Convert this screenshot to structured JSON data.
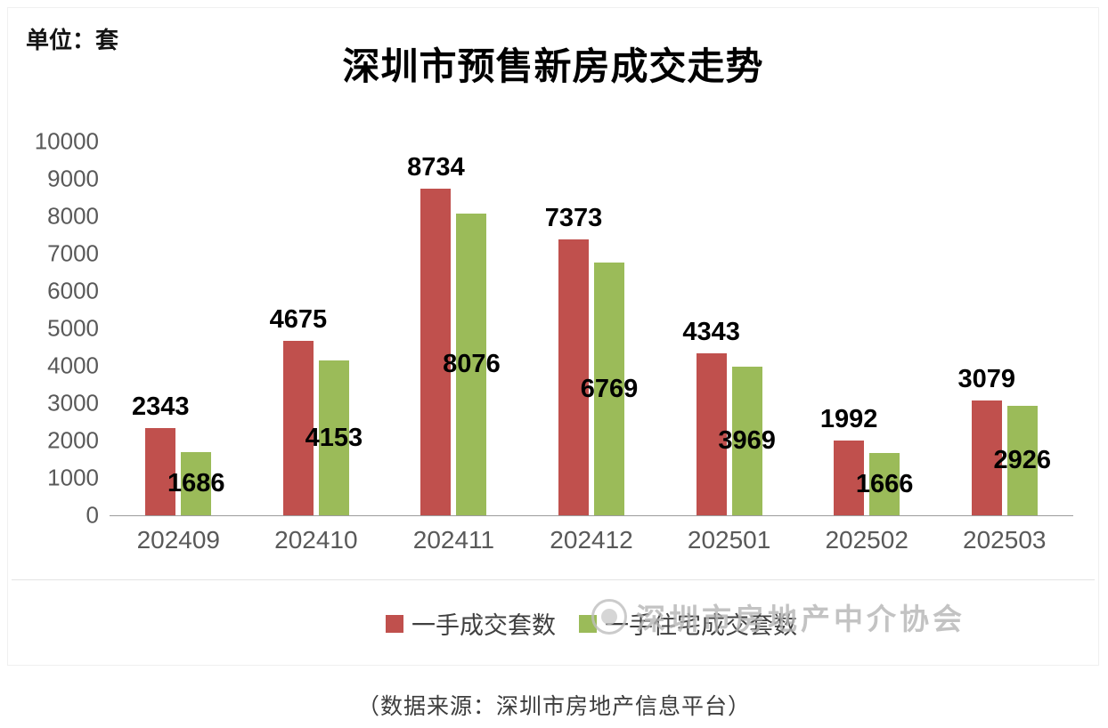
{
  "header": {
    "unit_label": "单位：套",
    "title": "深圳市预售新房成交走势"
  },
  "watermark": {
    "icon": "association-logo-circle",
    "text": "深圳市房地产中介协会"
  },
  "footer": {
    "source_caption": "（数据来源：深圳市房地产信息平台）"
  },
  "colors": {
    "series1": "#C0504D",
    "series2": "#9BBB59",
    "axis_text": "#595959",
    "value_label_text": "#000000",
    "watermark_text": "#B5B5B5"
  },
  "legend": {
    "items": [
      {
        "label": "一手成交套数",
        "color": "#C0504D"
      },
      {
        "label": "一手住宅成交套数",
        "color": "#9BBB59"
      }
    ]
  },
  "chart_data": {
    "type": "bar",
    "title": "深圳市预售新房成交走势",
    "unit": "套",
    "categories": [
      "202409",
      "202410",
      "202411",
      "202412",
      "202501",
      "202502",
      "202503"
    ],
    "series": [
      {
        "name": "一手成交套数",
        "color": "#C0504D",
        "values": [
          2343,
          4675,
          8734,
          7373,
          4343,
          1992,
          3079
        ],
        "label_position": "above"
      },
      {
        "name": "一手住宅成交套数",
        "color": "#9BBB59",
        "values": [
          1686,
          4153,
          8076,
          6769,
          3969,
          1666,
          2926
        ],
        "label_position": "inside-center"
      }
    ],
    "xlabel": "",
    "ylabel": "套",
    "ylim": [
      0,
      10000
    ],
    "yticks": [
      0,
      1000,
      2000,
      3000,
      4000,
      5000,
      6000,
      7000,
      8000,
      9000,
      10000
    ],
    "grid": false,
    "legend_position": "bottom"
  }
}
